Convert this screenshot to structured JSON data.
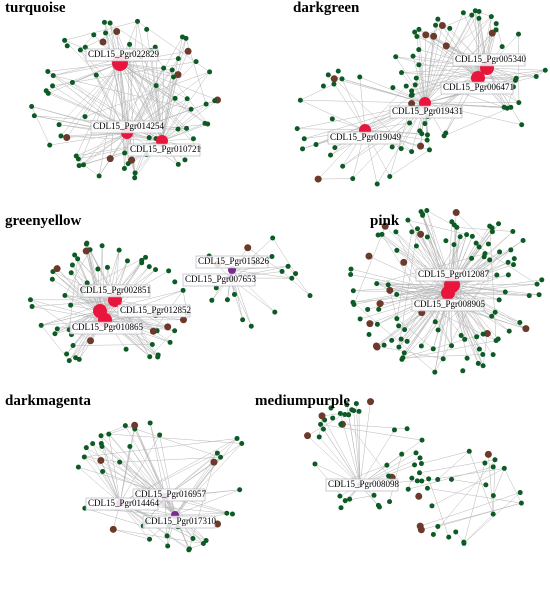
{
  "panels": [
    {
      "title": "turquoise",
      "hubs": [
        {
          "label": "CDL15_Pgr022829"
        },
        {
          "label": "CDL15_Pgr014254"
        },
        {
          "label": "CDL15_Pgr010721"
        }
      ]
    },
    {
      "title": "darkgreen",
      "hubs": [
        {
          "label": "CDL15_Pgr005340"
        },
        {
          "label": "CDL15_Pgr006471"
        },
        {
          "label": "CDL15_Pgr019431"
        },
        {
          "label": "CDL15_Pgr019049"
        }
      ]
    },
    {
      "title": "greenyellow",
      "hubs": [
        {
          "label": "CDL15_Pgr015826"
        },
        {
          "label": "CDL15_Pgr007653"
        },
        {
          "label": "CDL15_Pgr002851"
        },
        {
          "label": "CDL15_Pgr012852"
        },
        {
          "label": "CDL15_Pgr010865"
        }
      ]
    },
    {
      "title": "pink",
      "hubs": [
        {
          "label": "CDL15_Pgr012087"
        },
        {
          "label": "CDL15_Pgr008905"
        }
      ]
    },
    {
      "title": "darkmagenta",
      "hubs": [
        {
          "label": "CDL15_Pgr016957"
        },
        {
          "label": "CDL15_Pgr014464"
        },
        {
          "label": "CDL15_Pgr017310"
        }
      ]
    },
    {
      "title": "mediumpurple",
      "hubs": [
        {
          "label": "CDL15_Pgr008098"
        }
      ]
    }
  ]
}
